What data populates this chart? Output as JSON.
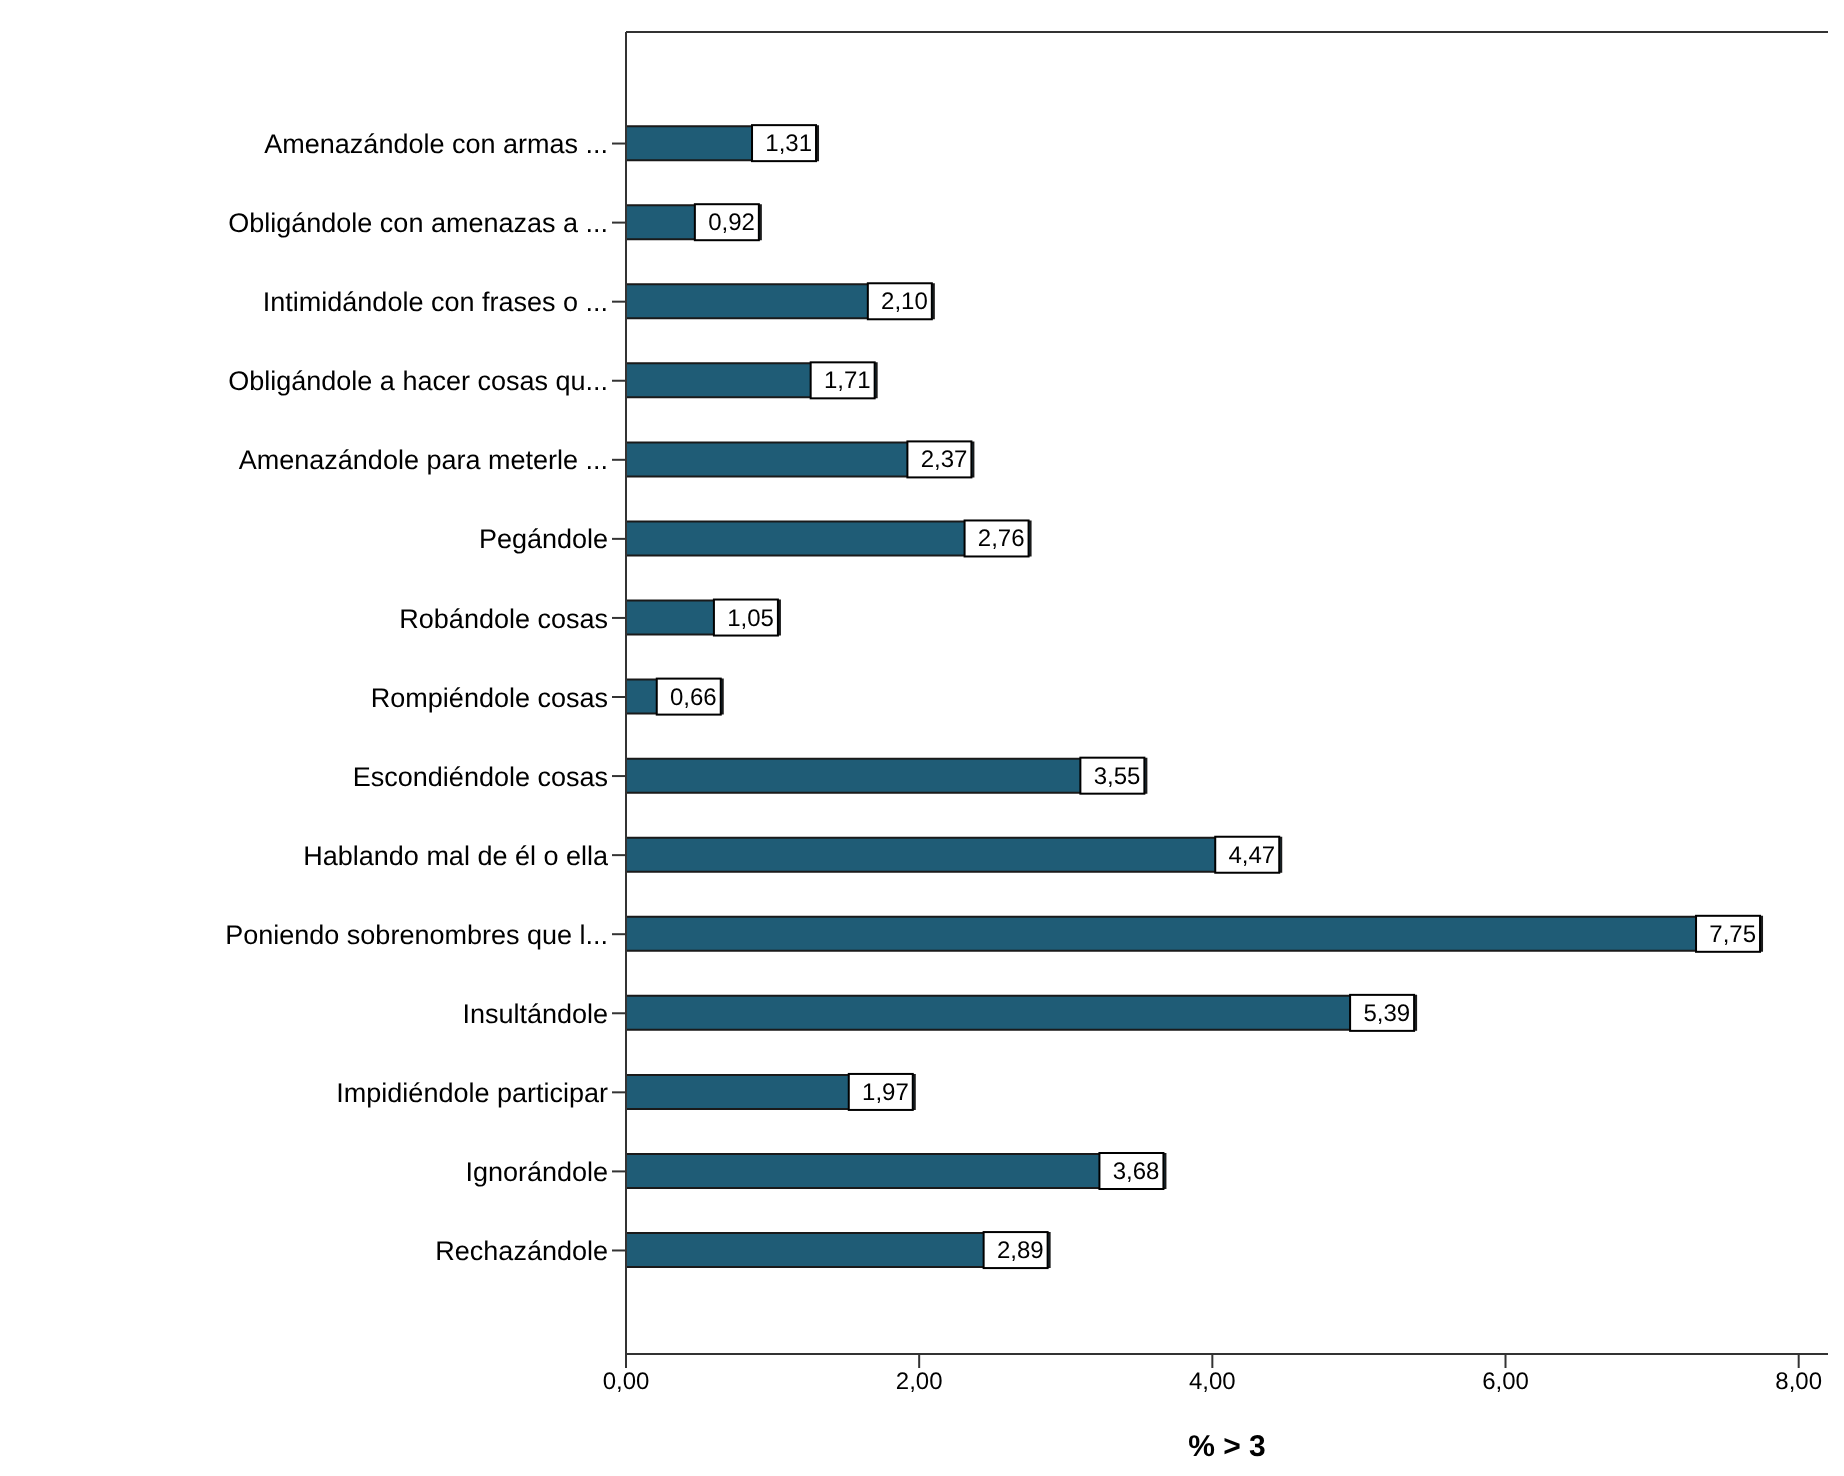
{
  "chart_data": {
    "type": "bar",
    "orientation": "horizontal",
    "xlabel": "% > 3",
    "categories": [
      "Amenazándole con armas ...",
      "Obligándole con amenazas a ...",
      "Intimidándole con frases o ...",
      "Obligándole a hacer cosas qu...",
      "Amenazándole para meterle ...",
      "Pegándole",
      "Robándole cosas",
      "Rompiéndole cosas",
      "Escondiéndole cosas",
      "Hablando mal de él o ella",
      "Poniendo sobrenombres que l...",
      "Insultándole",
      "Impidiéndole participar",
      "Ignorándole",
      "Rechazándole"
    ],
    "values": [
      1.31,
      0.92,
      2.1,
      1.71,
      2.37,
      2.76,
      1.05,
      0.66,
      3.55,
      4.47,
      7.75,
      5.39,
      1.97,
      3.68,
      2.89
    ],
    "value_labels": [
      "1,31",
      "0,92",
      "2,10",
      "1,71",
      "2,37",
      "2,76",
      "1,05",
      "0,66",
      "3,55",
      "4,47",
      "7,75",
      "5,39",
      "1,97",
      "3,68",
      "2,89"
    ],
    "color": "#1f5c76",
    "xlim": [
      0,
      8.2
    ],
    "xticks": [
      {
        "value": 0,
        "label": "0,00"
      },
      {
        "value": 2,
        "label": "2,00"
      },
      {
        "value": 4,
        "label": "4,00"
      },
      {
        "value": 6,
        "label": "6,00"
      },
      {
        "value": 8,
        "label": "8,00"
      }
    ],
    "grid": false,
    "legend": false
  }
}
